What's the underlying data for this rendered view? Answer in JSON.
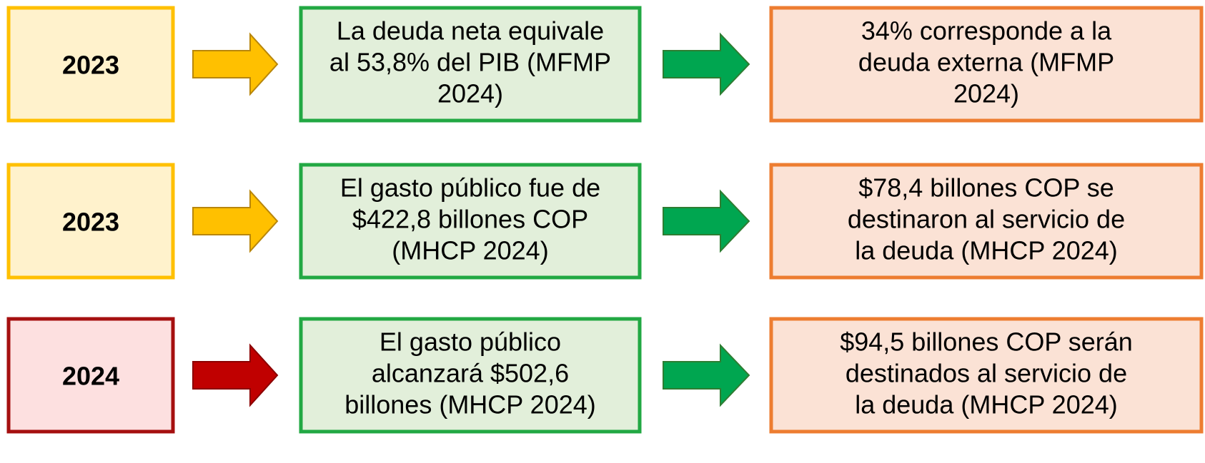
{
  "rows": [
    {
      "year": "2023",
      "middle": [
        "La deuda neta equivale",
        "al 53,8% del PIB (MFMP",
        "2024)"
      ],
      "right": [
        "34% corresponde a la",
        "deuda externa (MFMP",
        "2024)"
      ]
    },
    {
      "year": "2023",
      "middle": [
        "El gasto público fue de",
        "$422,8 billones COP",
        "(MHCP 2024)"
      ],
      "right": [
        "$78,4 billones COP se",
        "destinaron al servicio de",
        "la deuda (MHCP 2024)"
      ]
    },
    {
      "year": "2024",
      "middle": [
        "El gasto público",
        "alcanzará $502,6",
        "billones (MHCP 2024)"
      ],
      "right": [
        "$94,5 billones COP serán",
        "destinados al servicio de",
        "la deuda (MHCP 2024)"
      ]
    }
  ]
}
